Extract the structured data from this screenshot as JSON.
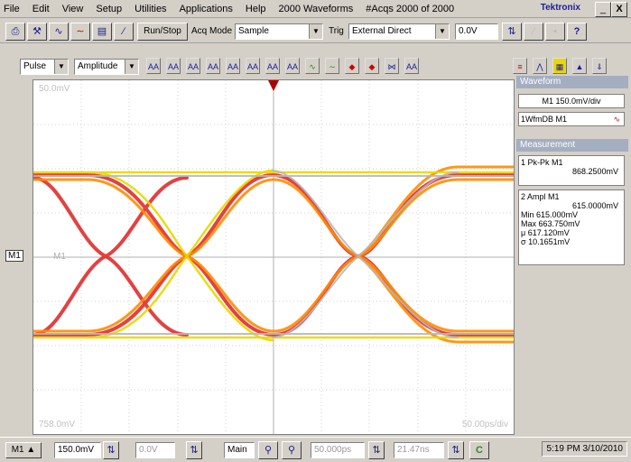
{
  "menu": [
    "File",
    "Edit",
    "View",
    "Setup",
    "Utilities",
    "Applications",
    "Help"
  ],
  "menu_info": [
    "2000 Waveforms",
    "#Acqs 2000 of 2000"
  ],
  "brand": "Tektronix",
  "window_buttons": [
    "_",
    "X"
  ],
  "toolbar1": {
    "run_stop": "Run/Stop",
    "acq_mode_label": "Acq Mode",
    "acq_mode_value": "Sample",
    "trig_label": "Trig",
    "trig_value": "External Direct",
    "level_value": "0.0V",
    "help_glyph": "?"
  },
  "toolbar2": {
    "category": "Pulse",
    "measurement": "Amplitude",
    "meas_buttons": [
      "AA",
      "AA",
      "AA",
      "AA",
      "AA",
      "AA",
      "AA",
      "AA",
      "AA",
      "AA",
      "AA",
      "AA",
      "AA"
    ]
  },
  "graticule": {
    "top_label": "50.0mV",
    "bottom_label": "758.0mV",
    "bottom_right_label": "50.00ps/div",
    "m1_marker": "M1",
    "left_marker": "M1"
  },
  "panel": {
    "waveform_header": "Waveform",
    "waveform_scale": "M1 150.0mV/div",
    "waveform_item": "1WfmDB M1",
    "measurement_header": "Measurement",
    "m1": {
      "label": "1 Pk-Pk  M1",
      "value": "868.2500mV"
    },
    "m2": {
      "label": "2 Ampl  M1",
      "value": "615.0000mV",
      "stats": [
        {
          "k": "Min",
          "v": "615.000mV"
        },
        {
          "k": "Max",
          "v": "663.750mV"
        },
        {
          "k": "μ",
          "v": "617.120mV"
        },
        {
          "k": "σ",
          "v": "10.1651mV"
        }
      ]
    }
  },
  "bottom": {
    "source": "M1",
    "scale": "150.0mV",
    "offset": "0.0V",
    "main": "Main",
    "time1": "50.000ps",
    "time2": "21.47ns",
    "status_time": "5:19 PM 3/10/2010"
  },
  "colors": {
    "accent": "#c8a000",
    "panel_header": "#a3aec1",
    "menu_bg": "#d4d0c8"
  }
}
